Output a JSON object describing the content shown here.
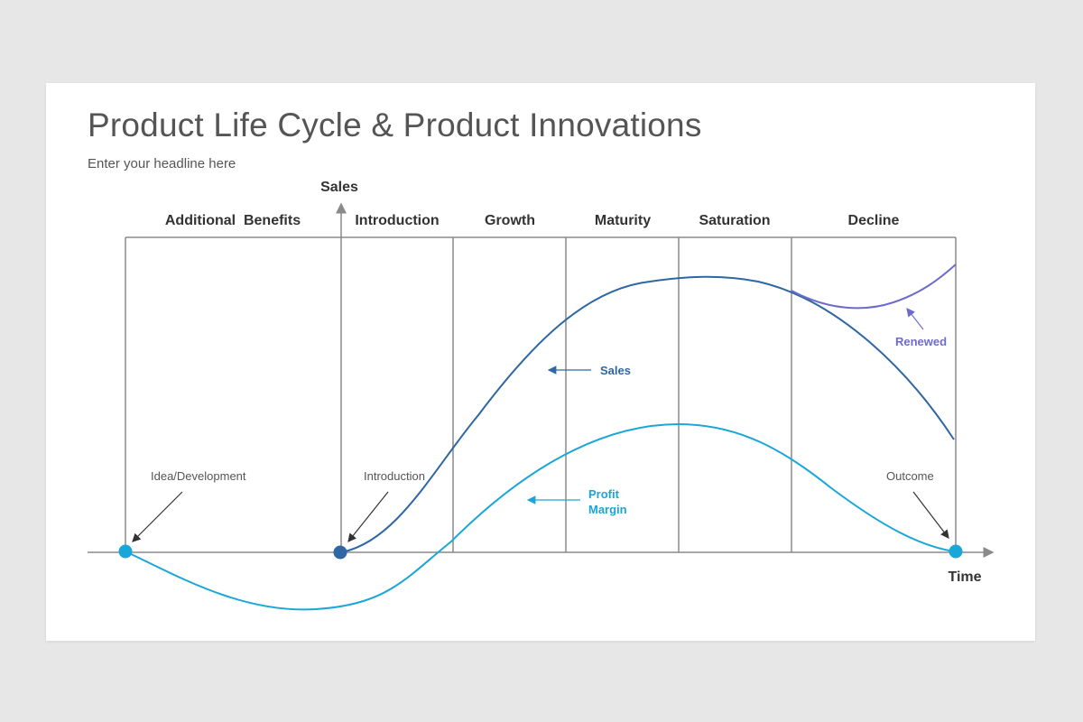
{
  "title": "Product Life Cycle & Product Innovations",
  "subtitle": "Enter your headline here",
  "axes": {
    "y_label": "Sales",
    "x_label": "Time"
  },
  "stages": [
    "Additional  Benefits",
    "Introduction",
    "Growth",
    "Maturity",
    "Saturation",
    "Decline"
  ],
  "annotations": {
    "idea": "Idea/Development",
    "introduction": "Introduction",
    "outcome": "Outcome",
    "sales": "Sales",
    "profit_line1": "Profit",
    "profit_line2": "Margin",
    "renewed": "Renewed"
  },
  "colors": {
    "sales": "#2e67a3",
    "profit": "#1aa6d8",
    "renewed": "#6e6ccb",
    "grid": "#8a8a8a"
  }
}
